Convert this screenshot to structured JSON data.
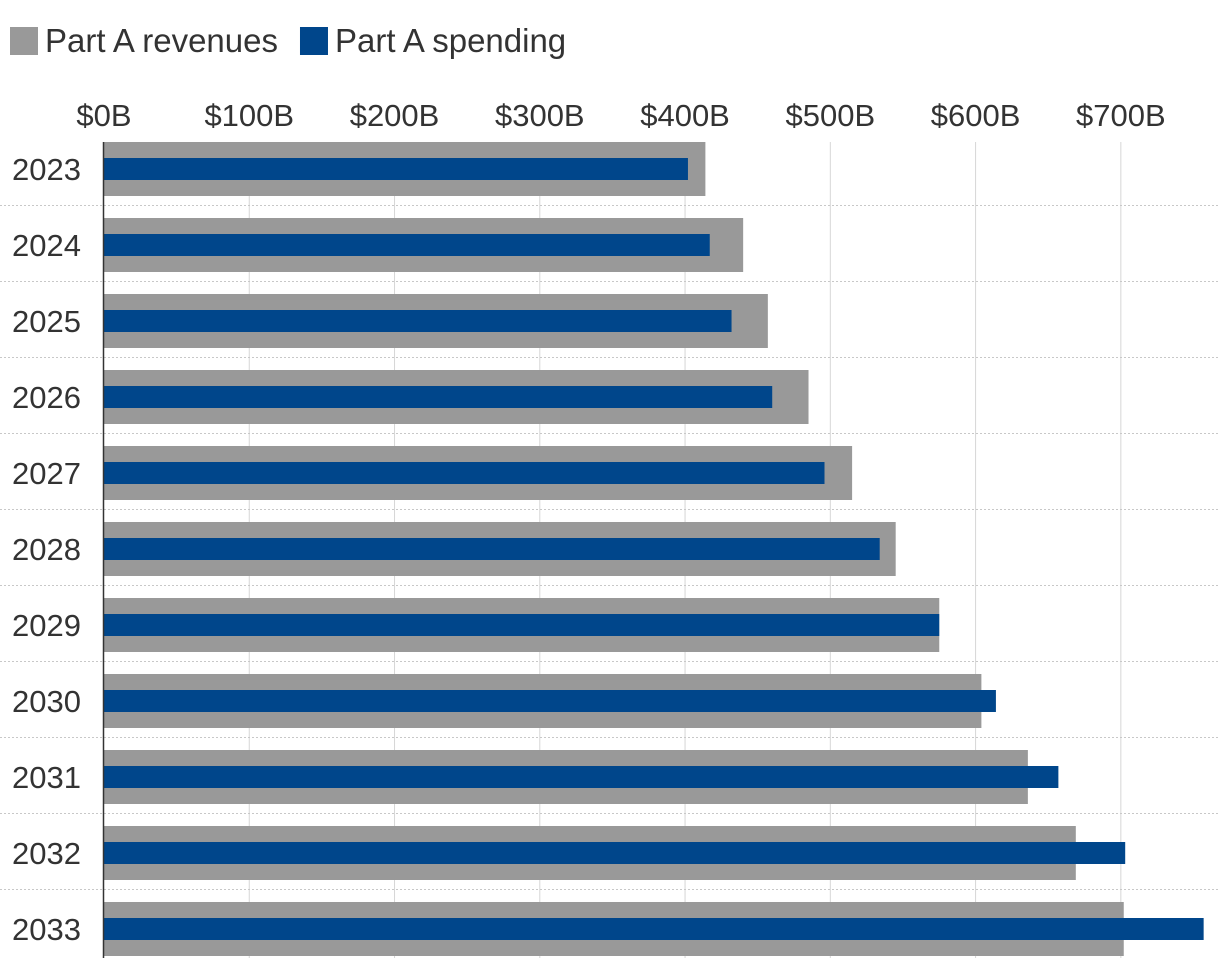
{
  "chart_data": {
    "type": "bar",
    "orientation": "horizontal",
    "title": "",
    "xlabel": "",
    "ylabel": "",
    "categories": [
      "2023",
      "2024",
      "2025",
      "2026",
      "2027",
      "2028",
      "2029",
      "2030",
      "2031",
      "2032",
      "2033"
    ],
    "series": [
      {
        "name": "Part A revenues",
        "color": "#999999",
        "values": [
          414,
          440,
          457,
          485,
          515,
          545,
          575,
          604,
          636,
          669,
          702
        ]
      },
      {
        "name": "Part A spending",
        "color": "#00468b",
        "values": [
          402,
          417,
          432,
          460,
          496,
          534,
          575,
          614,
          657,
          703,
          757
        ]
      }
    ],
    "x_ticks": [
      {
        "value": 0,
        "label": "$0B"
      },
      {
        "value": 100,
        "label": "$100B"
      },
      {
        "value": 200,
        "label": "$200B"
      },
      {
        "value": 300,
        "label": "$300B"
      },
      {
        "value": 400,
        "label": "$400B"
      },
      {
        "value": 500,
        "label": "$500B"
      },
      {
        "value": 600,
        "label": "$600B"
      },
      {
        "value": 700,
        "label": "$700B"
      }
    ],
    "xlim": [
      0,
      760
    ],
    "legend_position": "top-left",
    "grid": true
  }
}
